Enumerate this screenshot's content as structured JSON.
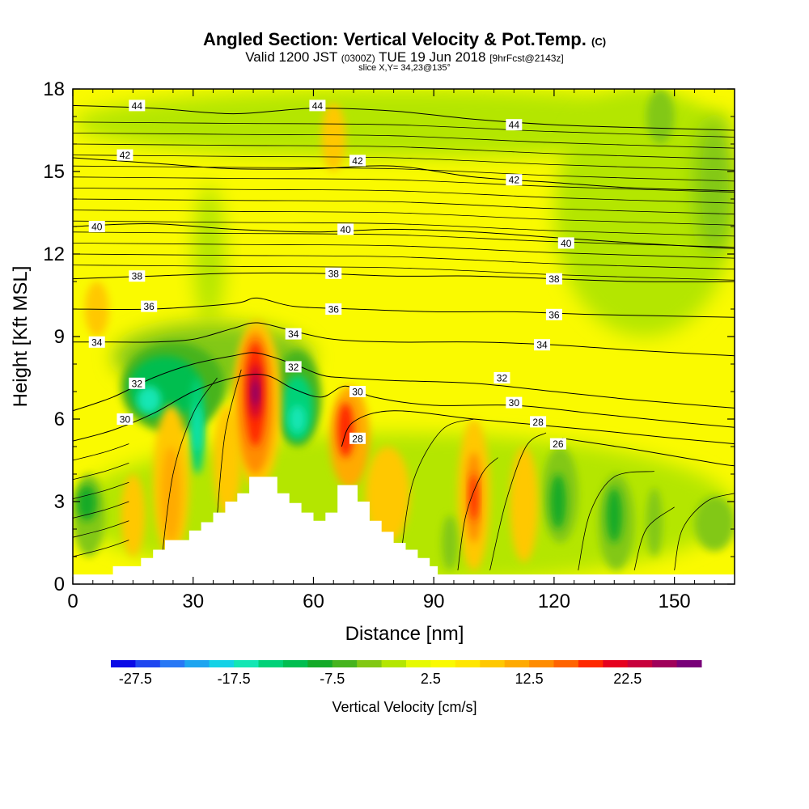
{
  "header": {
    "title_main": "Angled Section: Vertical Velocity & Pot.Temp.",
    "title_mark": "(C)",
    "valid_pre": "Valid 1200 JST",
    "valid_z": "(0300Z)",
    "valid_date": "TUE 19 Jun 2018",
    "valid_fcst": "[9hrFcst@2143z]",
    "slice": "slice X,Y= 34,23@135°"
  },
  "chart_data": {
    "type": "heatmap",
    "title": "Angled Section: Vertical Velocity & Pot.Temp.",
    "xlabel": "Distance [nm]",
    "ylabel": "Height [Kft MSL]",
    "xlim": [
      0,
      165
    ],
    "ylim": [
      0,
      18
    ],
    "x_ticks": [
      0,
      30,
      60,
      90,
      120,
      150
    ],
    "y_ticks": [
      0,
      3,
      6,
      9,
      12,
      15,
      18
    ],
    "colorbar": {
      "label": "Vertical Velocity [cm/s]",
      "tick_labels": [
        "-27.5",
        "-17.5",
        "-7.5",
        "2.5",
        "12.5",
        "22.5"
      ],
      "tick_values": [
        -27.5,
        -17.5,
        -7.5,
        2.5,
        12.5,
        22.5
      ],
      "bins": [
        -30,
        -27.5,
        -25,
        -22.5,
        -20,
        -17.5,
        -15,
        -12.5,
        -10,
        -7.5,
        -5,
        -2.5,
        0,
        2.5,
        5,
        7.5,
        10,
        12.5,
        15,
        17.5,
        20,
        22.5,
        25,
        27.5,
        30
      ],
      "colors": [
        "#0a0ae6",
        "#1e46f0",
        "#2878f5",
        "#1ea5f0",
        "#14d2e6",
        "#14e6b4",
        "#00d278",
        "#00be50",
        "#14aa28",
        "#46b41e",
        "#82c814",
        "#b4e600",
        "#e6fa00",
        "#fafa00",
        "#ffe600",
        "#ffc800",
        "#ffaa00",
        "#ff8c00",
        "#ff6400",
        "#ff2800",
        "#e6001e",
        "#c8003c",
        "#a0005a",
        "#780078"
      ]
    },
    "theta_contours": [
      {
        "label": "26",
        "pts": [
          [
            122,
            5.3
          ],
          [
            140,
            4.9
          ],
          [
            160,
            4.4
          ],
          [
            165,
            4.3
          ]
        ]
      },
      {
        "label": "28",
        "pts": [
          [
            67,
            5.0
          ],
          [
            70,
            5.9
          ],
          [
            80,
            6.3
          ],
          [
            100,
            6.0
          ],
          [
            115,
            5.8
          ],
          [
            130,
            5.6
          ],
          [
            150,
            5.3
          ],
          [
            165,
            5.1
          ]
        ]
      },
      {
        "label": "30",
        "pts": [
          [
            0,
            5.2
          ],
          [
            10,
            5.6
          ],
          [
            20,
            6.2
          ],
          [
            30,
            7.0
          ],
          [
            40,
            7.5
          ],
          [
            48,
            7.6
          ],
          [
            55,
            7.1
          ],
          [
            62,
            6.8
          ],
          [
            68,
            7.2
          ],
          [
            75,
            6.8
          ],
          [
            90,
            6.5
          ],
          [
            110,
            6.5
          ],
          [
            130,
            6.2
          ],
          [
            150,
            5.9
          ],
          [
            165,
            5.7
          ]
        ]
      },
      {
        "label": "32",
        "pts": [
          [
            0,
            6.3
          ],
          [
            10,
            6.8
          ],
          [
            20,
            7.5
          ],
          [
            30,
            8.0
          ],
          [
            40,
            8.3
          ],
          [
            46,
            8.4
          ],
          [
            55,
            8.0
          ],
          [
            62,
            7.6
          ],
          [
            68,
            7.5
          ],
          [
            80,
            7.4
          ],
          [
            100,
            7.3
          ],
          [
            120,
            7.0
          ],
          [
            140,
            6.7
          ],
          [
            165,
            6.4
          ]
        ]
      },
      {
        "label": "34",
        "pts": [
          [
            0,
            8.8
          ],
          [
            10,
            8.8
          ],
          [
            20,
            8.8
          ],
          [
            30,
            8.9
          ],
          [
            40,
            9.3
          ],
          [
            46,
            9.5
          ],
          [
            55,
            9.2
          ],
          [
            65,
            8.9
          ],
          [
            80,
            8.8
          ],
          [
            100,
            8.8
          ],
          [
            120,
            8.7
          ],
          [
            140,
            8.5
          ],
          [
            165,
            8.3
          ]
        ]
      },
      {
        "label": "36",
        "pts": [
          [
            0,
            10.0
          ],
          [
            20,
            10.0
          ],
          [
            40,
            10.2
          ],
          [
            46,
            10.4
          ],
          [
            55,
            10.1
          ],
          [
            70,
            10.0
          ],
          [
            90,
            9.9
          ],
          [
            110,
            9.9
          ],
          [
            130,
            9.8
          ],
          [
            165,
            9.7
          ]
        ]
      },
      {
        "label": "38",
        "pts": [
          [
            0,
            11.1
          ],
          [
            20,
            11.2
          ],
          [
            40,
            11.3
          ],
          [
            60,
            11.3
          ],
          [
            80,
            11.2
          ],
          [
            100,
            11.2
          ],
          [
            120,
            11.1
          ],
          [
            140,
            11.0
          ],
          [
            165,
            11.0
          ]
        ]
      },
      {
        "label": "40",
        "pts": [
          [
            0,
            13.0
          ],
          [
            20,
            13.1
          ],
          [
            40,
            12.9
          ],
          [
            60,
            12.8
          ],
          [
            80,
            12.9
          ],
          [
            100,
            12.8
          ],
          [
            120,
            12.6
          ],
          [
            140,
            12.4
          ],
          [
            165,
            12.2
          ]
        ]
      },
      {
        "label": "42",
        "pts": [
          [
            0,
            15.5
          ],
          [
            20,
            15.3
          ],
          [
            40,
            15.1
          ],
          [
            60,
            15.1
          ],
          [
            80,
            15.2
          ],
          [
            100,
            14.8
          ],
          [
            120,
            14.6
          ],
          [
            140,
            14.4
          ],
          [
            165,
            14.3
          ]
        ]
      },
      {
        "label": "44",
        "pts": [
          [
            0,
            17.4
          ],
          [
            20,
            17.3
          ],
          [
            40,
            17.1
          ],
          [
            60,
            17.3
          ],
          [
            80,
            17.2
          ],
          [
            100,
            16.9
          ],
          [
            120,
            16.7
          ],
          [
            140,
            16.6
          ],
          [
            165,
            16.5
          ]
        ]
      }
    ],
    "contour_labels": [
      {
        "text": "44",
        "x": 16,
        "y": 17.4
      },
      {
        "text": "44",
        "x": 61,
        "y": 17.4
      },
      {
        "text": "44",
        "x": 110,
        "y": 16.7
      },
      {
        "text": "42",
        "x": 13,
        "y": 15.6
      },
      {
        "text": "42",
        "x": 71,
        "y": 15.4
      },
      {
        "text": "42",
        "x": 110,
        "y": 14.7
      },
      {
        "text": "40",
        "x": 6,
        "y": 13.0
      },
      {
        "text": "40",
        "x": 68,
        "y": 12.9
      },
      {
        "text": "40",
        "x": 123,
        "y": 12.4
      },
      {
        "text": "38",
        "x": 16,
        "y": 11.2
      },
      {
        "text": "38",
        "x": 65,
        "y": 11.3
      },
      {
        "text": "38",
        "x": 120,
        "y": 11.1
      },
      {
        "text": "36",
        "x": 19,
        "y": 10.1
      },
      {
        "text": "36",
        "x": 65,
        "y": 10.0
      },
      {
        "text": "36",
        "x": 120,
        "y": 9.8
      },
      {
        "text": "34",
        "x": 6,
        "y": 8.8
      },
      {
        "text": "34",
        "x": 55,
        "y": 9.1
      },
      {
        "text": "34",
        "x": 117,
        "y": 8.7
      },
      {
        "text": "32",
        "x": 16,
        "y": 7.3
      },
      {
        "text": "32",
        "x": 55,
        "y": 7.9
      },
      {
        "text": "32",
        "x": 107,
        "y": 7.5
      },
      {
        "text": "30",
        "x": 13,
        "y": 6.0
      },
      {
        "text": "30",
        "x": 71,
        "y": 7.0
      },
      {
        "text": "30",
        "x": 110,
        "y": 6.6
      },
      {
        "text": "28",
        "x": 71,
        "y": 5.3
      },
      {
        "text": "28",
        "x": 116,
        "y": 5.9
      },
      {
        "text": "26",
        "x": 121,
        "y": 5.1
      }
    ],
    "terrain": [
      [
        0,
        0.35
      ],
      [
        10,
        0.35
      ],
      [
        10,
        0.65
      ],
      [
        17,
        0.65
      ],
      [
        17,
        0.95
      ],
      [
        20,
        0.95
      ],
      [
        20,
        1.25
      ],
      [
        23,
        1.25
      ],
      [
        23,
        1.6
      ],
      [
        29,
        1.6
      ],
      [
        29,
        1.95
      ],
      [
        32,
        1.95
      ],
      [
        32,
        2.25
      ],
      [
        35,
        2.25
      ],
      [
        35,
        2.6
      ],
      [
        38,
        2.6
      ],
      [
        38,
        3.0
      ],
      [
        41,
        3.0
      ],
      [
        41,
        3.3
      ],
      [
        44,
        3.3
      ],
      [
        44,
        3.9
      ],
      [
        51,
        3.9
      ],
      [
        51,
        3.3
      ],
      [
        54,
        3.3
      ],
      [
        54,
        2.95
      ],
      [
        57,
        2.95
      ],
      [
        57,
        2.6
      ],
      [
        60,
        2.6
      ],
      [
        60,
        2.3
      ],
      [
        63,
        2.3
      ],
      [
        63,
        2.6
      ],
      [
        66,
        2.6
      ],
      [
        66,
        3.6
      ],
      [
        71,
        3.6
      ],
      [
        71,
        3.0
      ],
      [
        74,
        3.0
      ],
      [
        74,
        2.3
      ],
      [
        77,
        2.3
      ],
      [
        77,
        1.9
      ],
      [
        80,
        1.9
      ],
      [
        80,
        1.5
      ],
      [
        83,
        1.5
      ],
      [
        83,
        1.25
      ],
      [
        86,
        1.25
      ],
      [
        86,
        0.95
      ],
      [
        89,
        0.95
      ],
      [
        89,
        0.65
      ],
      [
        91,
        0.65
      ],
      [
        91,
        0.35
      ],
      [
        165,
        0.35
      ]
    ]
  }
}
